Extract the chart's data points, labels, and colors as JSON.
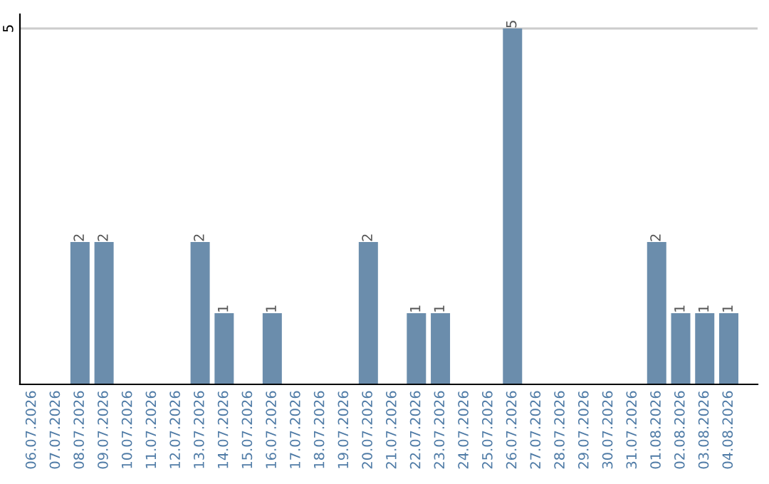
{
  "chart_data": {
    "type": "bar",
    "categories": [
      "06.07.2026",
      "07.07.2026",
      "08.07.2026",
      "09.07.2026",
      "10.07.2026",
      "11.07.2026",
      "12.07.2026",
      "13.07.2026",
      "14.07.2026",
      "15.07.2026",
      "16.07.2026",
      "17.07.2026",
      "18.07.2026",
      "19.07.2026",
      "20.07.2026",
      "21.07.2026",
      "22.07.2026",
      "23.07.2026",
      "24.07.2026",
      "25.07.2026",
      "26.07.2026",
      "27.07.2026",
      "28.07.2026",
      "29.07.2026",
      "30.07.2026",
      "31.07.2026",
      "01.08.2026",
      "02.08.2026",
      "03.08.2026",
      "04.08.2026"
    ],
    "values": [
      0,
      0,
      2,
      2,
      0,
      0,
      0,
      2,
      1,
      0,
      1,
      0,
      0,
      0,
      2,
      0,
      1,
      1,
      0,
      0,
      5,
      0,
      0,
      0,
      0,
      0,
      2,
      1,
      1,
      1
    ],
    "color": "#6b8dac",
    "value_labels": [
      null,
      null,
      "2",
      "2",
      null,
      null,
      null,
      "2",
      "1",
      null,
      "1",
      null,
      null,
      null,
      "2",
      null,
      "1",
      "1",
      null,
      null,
      "5",
      null,
      null,
      null,
      null,
      null,
      "2",
      "1",
      "1",
      "1"
    ],
    "ylim": [
      0,
      5.2
    ],
    "yticks": [
      5
    ],
    "grid": "y"
  }
}
